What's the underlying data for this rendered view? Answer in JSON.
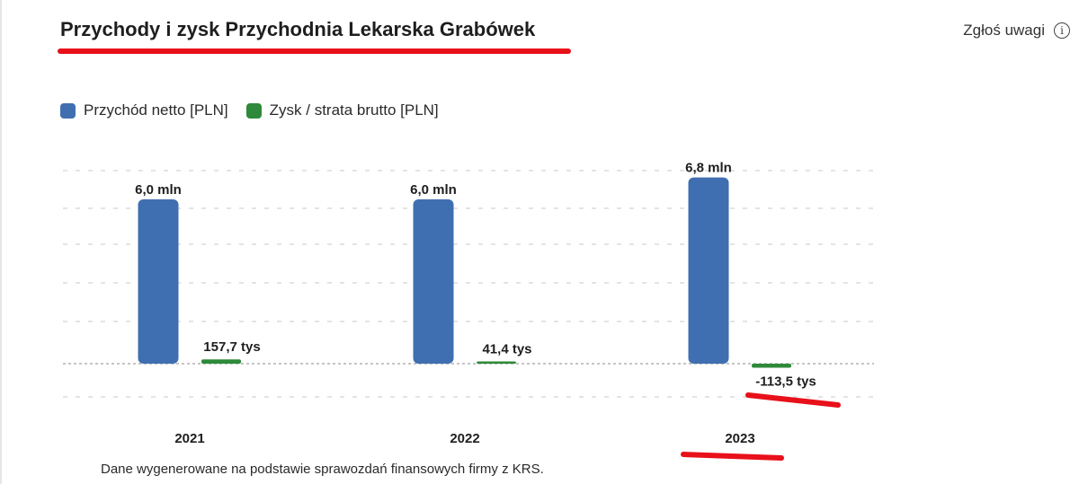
{
  "header": {
    "title": "Przychody i zysk Przychodnia Lekarska Grabówek",
    "report_label": "Zgłoś uwagi",
    "info_icon": "info-icon"
  },
  "legend": {
    "items": [
      {
        "label": "Przychód netto [PLN]",
        "color": "#3f6fb0"
      },
      {
        "label": "Zysk / strata brutto [PLN]",
        "color": "#2e8a3a"
      }
    ]
  },
  "chart_data": {
    "type": "bar",
    "categories": [
      "2021",
      "2022",
      "2023"
    ],
    "series": [
      {
        "name": "Przychód netto [PLN]",
        "values": [
          6000000,
          6000000,
          6800000
        ],
        "labels": [
          "6,0 mln",
          "6,0 mln",
          "6,8 mln"
        ],
        "color": "#3f6fb0"
      },
      {
        "name": "Zysk / strata brutto [PLN]",
        "values": [
          157700,
          41400,
          -113500
        ],
        "labels": [
          "157,7 tys",
          "41,4 tys",
          "-113,5 tys"
        ],
        "color": "#2e8a3a"
      }
    ],
    "grid": true,
    "legend": "top-left",
    "annotations": {
      "highlight_color": "#e8101a"
    }
  },
  "footer": {
    "note": "Dane wygenerowane na podstawie sprawozdań finansowych firmy z KRS."
  }
}
